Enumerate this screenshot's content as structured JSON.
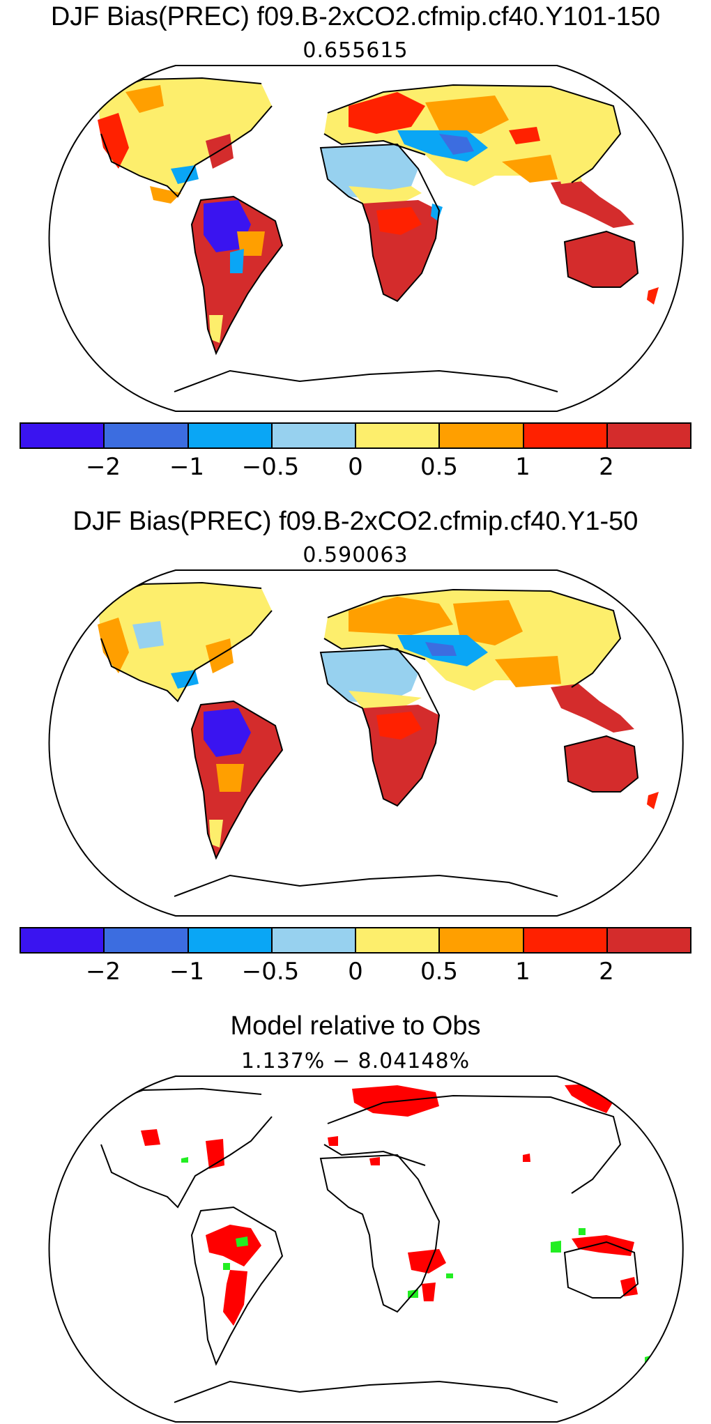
{
  "panels": [
    {
      "title": "DJF Bias(PREC) f09.B-2xCO2.cfmip.cf40.Y101-150",
      "subtitle": "0.655615"
    },
    {
      "title": "DJF Bias(PREC) f09.B-2xCO2.cfmip.cf40.Y1-50",
      "subtitle": "0.590063"
    },
    {
      "title": "Model relative to Obs",
      "subtitle": "1.137% − 8.04148%"
    }
  ],
  "colorbar": {
    "colors": [
      "#3a14f0",
      "#3c6de0",
      "#0aa6f5",
      "#97d1ef",
      "#fdee6c",
      "#ff9f00",
      "#ff2100",
      "#d42c2c"
    ],
    "tick_labels": [
      "−2",
      "−1",
      "−0.5",
      "0",
      "0.5",
      "1",
      "2"
    ]
  },
  "relative_colors": {
    "model_higher": "#ff0000",
    "model_lower": "#22ee22"
  }
}
